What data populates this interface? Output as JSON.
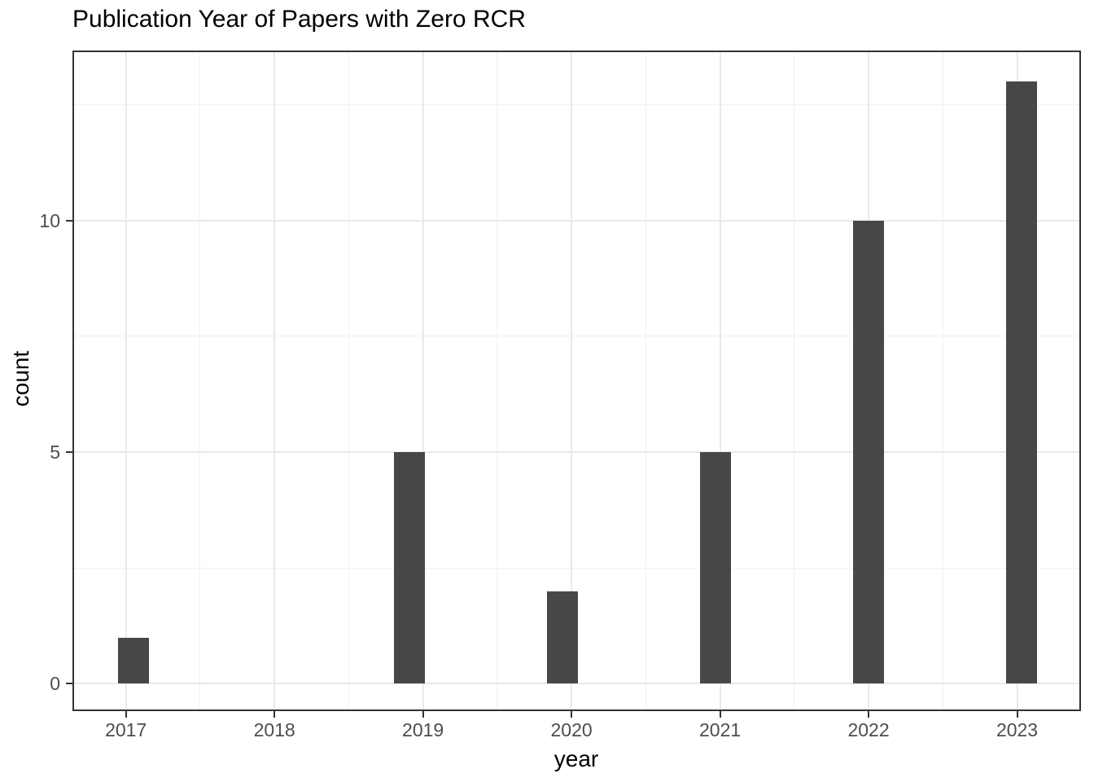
{
  "chart_data": {
    "type": "bar",
    "title": "Publication Year of Papers with Zero RCR",
    "xlabel": "year",
    "ylabel": "count",
    "categories": [
      "2017",
      "2018",
      "2019",
      "2020",
      "2021",
      "2022",
      "2023"
    ],
    "values": [
      1,
      0,
      5,
      2,
      5,
      10,
      13
    ],
    "bars": [
      {
        "x": 2017.05,
        "count": 1
      },
      {
        "x": 2018.91,
        "count": 5
      },
      {
        "x": 2019.94,
        "count": 2
      },
      {
        "x": 2020.97,
        "count": 5
      },
      {
        "x": 2022.0,
        "count": 10
      },
      {
        "x": 2023.03,
        "count": 13
      }
    ],
    "bar_width_years": 0.207,
    "x_tick_years": [
      2017,
      2018,
      2019,
      2020,
      2021,
      2022,
      2023
    ],
    "y_ticks": [
      0,
      5,
      10
    ],
    "y_minor_ticks": [
      2.5,
      7.5,
      12.5
    ],
    "xlim": [
      2016.64,
      2023.43
    ],
    "ylim": [
      -0.59,
      13.67
    ],
    "grid": "major-and-minor",
    "legend": "none",
    "colors": {
      "bar": "#474747",
      "grid_major": "#e9e9e9",
      "grid_minor": "#f0f0f0",
      "panel_border": "#333333",
      "panel_bg": "#ffffff",
      "tick_label": "#4d4d4d",
      "tick_mark": "#333333",
      "title": "#000000",
      "axis_title": "#000000"
    }
  }
}
